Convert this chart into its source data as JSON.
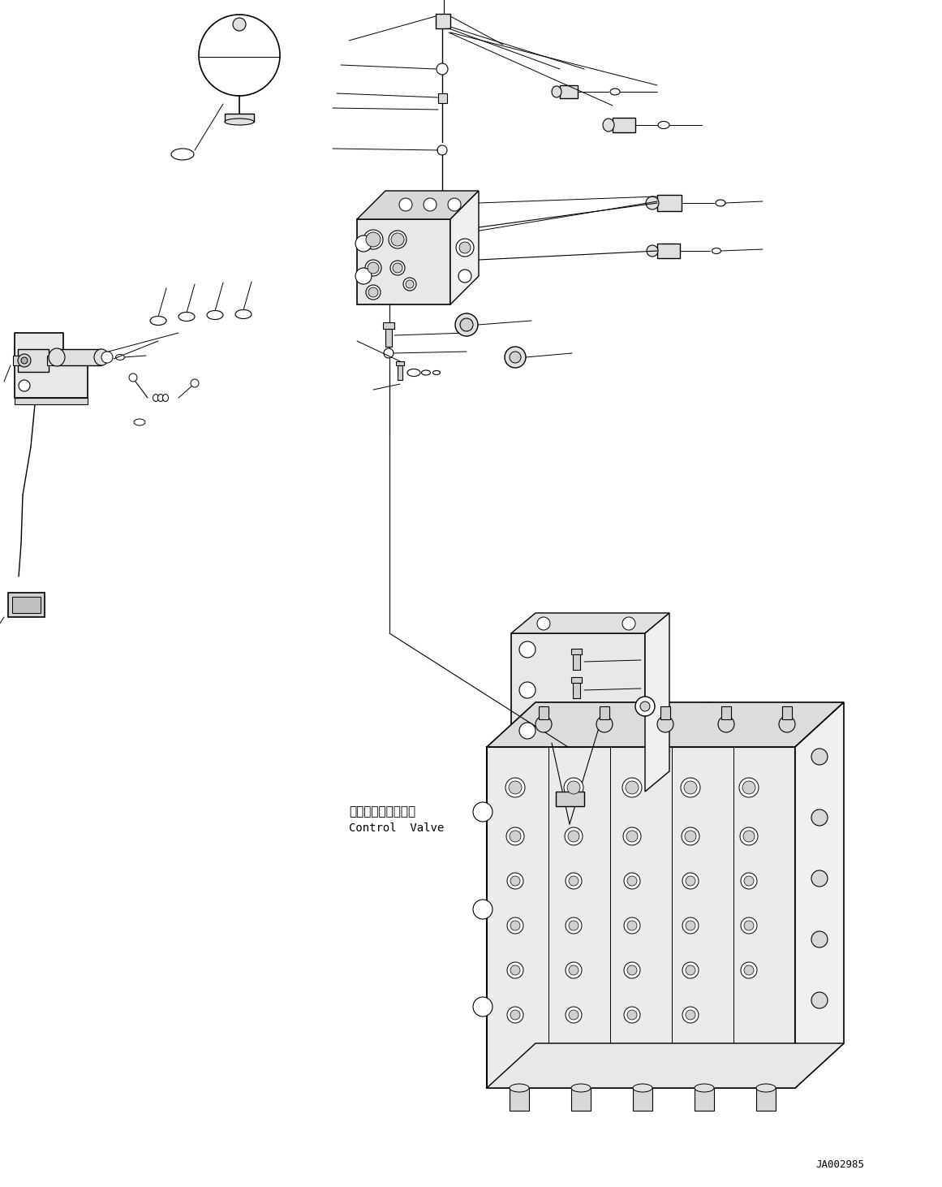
{
  "bg_color": "#ffffff",
  "lc": "#000000",
  "lw": 0.8,
  "part_code": "JA002985",
  "label_cv_jp": "コントロールバルブ",
  "label_cv_en": "Control  Valve",
  "figsize": [
    11.61,
    14.62
  ],
  "dpi": 100
}
